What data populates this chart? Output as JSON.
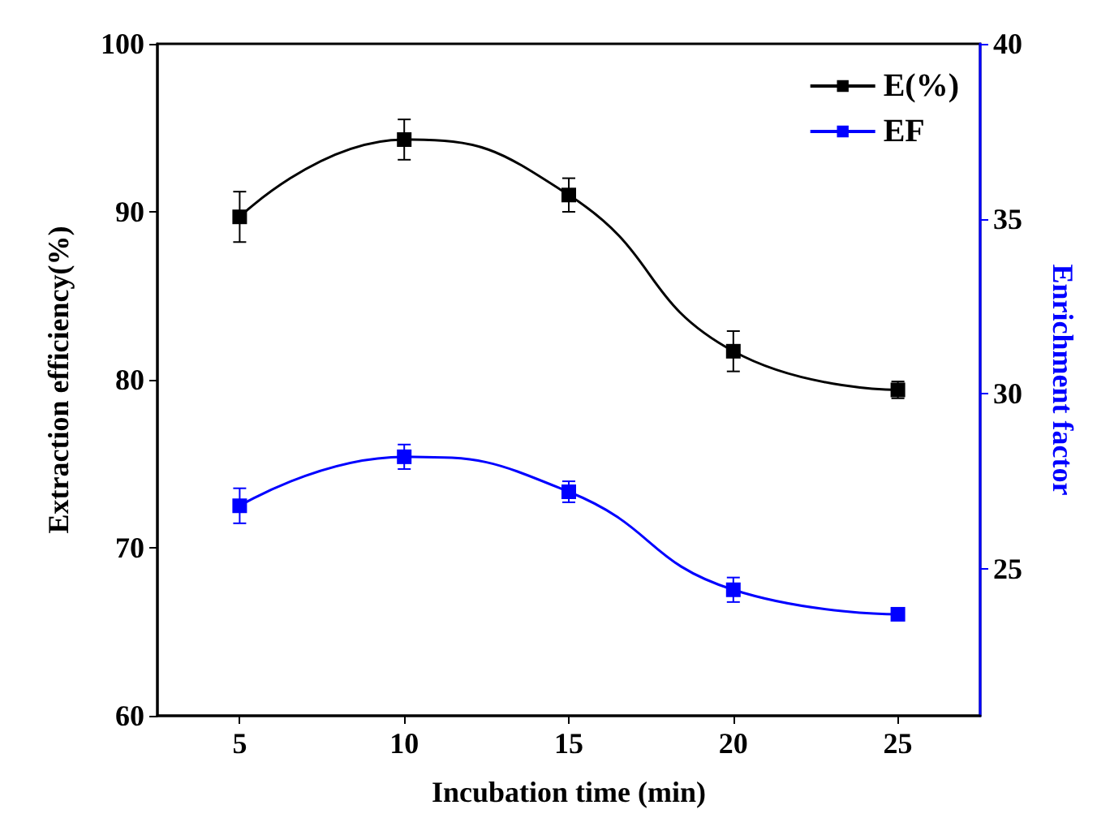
{
  "chart_data": {
    "type": "line",
    "xlabel": "Incubation time (min)",
    "ylabel": "Extraction efficiency(%)",
    "y2label": "Enrichment factor",
    "x": [
      5,
      10,
      15,
      20,
      25
    ],
    "series": [
      {
        "name": "E(%)",
        "color": "#000000",
        "values": [
          89.7,
          94.3,
          91.0,
          81.7,
          79.4
        ],
        "errors": [
          1.5,
          1.2,
          1.0,
          1.2,
          0.5
        ]
      },
      {
        "name": "EF",
        "color": "#0000ff",
        "axis": "y2",
        "values": [
          26.8,
          28.2,
          27.2,
          24.4,
          23.7
        ],
        "errors": [
          0.5,
          0.35,
          0.3,
          0.35,
          null
        ]
      }
    ],
    "xlim": [
      2.5,
      27.5
    ],
    "xticks": [
      5,
      10,
      15,
      20,
      25
    ],
    "ylim": [
      60,
      100
    ],
    "yticks": [
      60,
      70,
      80,
      90,
      100
    ],
    "y2lim": [
      20.8,
      40
    ],
    "y2ticks": [
      25,
      30,
      35,
      40
    ],
    "grid": false,
    "legend": "top right",
    "marker": "square",
    "line_style": "solid"
  }
}
